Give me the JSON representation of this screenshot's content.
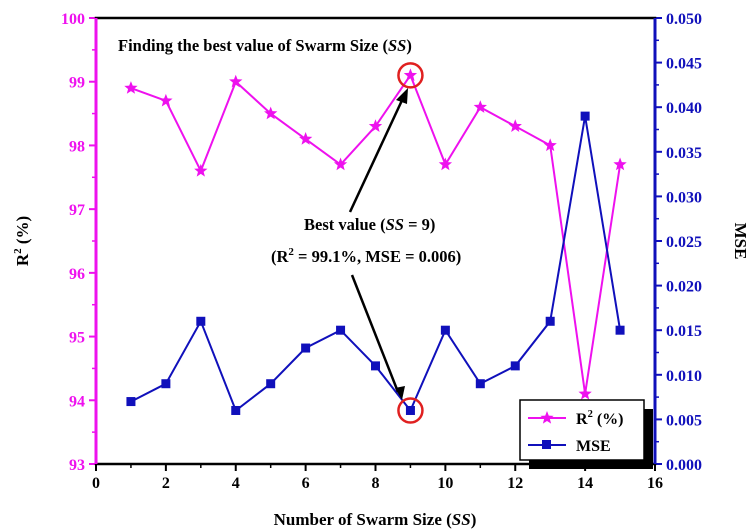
{
  "colors": {
    "r2": "#ee11ee",
    "mse": "#1010bb",
    "marker": "#e02020",
    "axis": "#000000"
  },
  "chart_data": {
    "type": "line",
    "title": "Finding the best value of Swarm Size (SS)",
    "title_main": "Finding the best value of Swarm Size (",
    "title_ss": "SS",
    "title_close": ")",
    "xlabel": "Number of Swarm Size (SS)",
    "xlabel_main": "Number of Swarm Size (",
    "xlabel_ss": "SS",
    "xlabel_close": ")",
    "ylabel_left": "R2 (%)",
    "ylabel_left_base": "R",
    "ylabel_left_sup": "2",
    "ylabel_left_unit": " (%)",
    "ylabel_right": "MSE",
    "xlim": [
      0,
      16
    ],
    "ylim_left": [
      93,
      100
    ],
    "ylim_right": [
      0,
      0.05
    ],
    "xticks": [
      0,
      2,
      4,
      6,
      8,
      10,
      12,
      14,
      16
    ],
    "yticks_left": [
      "93",
      "94",
      "95",
      "96",
      "97",
      "98",
      "99",
      "100"
    ],
    "yticks_right": [
      "0.000",
      "0.005",
      "0.010",
      "0.015",
      "0.020",
      "0.025",
      "0.030",
      "0.035",
      "0.040",
      "0.045",
      "0.050"
    ],
    "x": [
      1,
      2,
      3,
      4,
      5,
      6,
      7,
      8,
      9,
      10,
      11,
      12,
      13,
      14,
      15
    ],
    "series": [
      {
        "name": "R2 (%)",
        "legend_base": "R",
        "legend_sup": "2",
        "legend_unit": " (%)",
        "axis": "left",
        "marker": "star",
        "values": [
          98.9,
          98.7,
          97.6,
          99.0,
          98.5,
          98.1,
          97.7,
          98.3,
          99.1,
          97.7,
          98.6,
          98.3,
          98.0,
          94.1,
          97.7
        ]
      },
      {
        "name": "MSE",
        "legend_base": "MSE",
        "axis": "right",
        "marker": "square",
        "values": [
          0.007,
          0.009,
          0.016,
          0.006,
          0.009,
          0.013,
          0.015,
          0.011,
          0.006,
          0.015,
          0.009,
          0.011,
          0.016,
          0.039,
          0.015
        ]
      }
    ],
    "annotation": {
      "line1_main": "Best value (",
      "line1_ss": "SS",
      "line1_close": " = 9)",
      "line2_open": "(R",
      "line2_sup": "2",
      "line2_rest": " = 99.1%, MSE = 0.006)",
      "highlight_x": 9,
      "highlight_r2": 99.1,
      "highlight_mse": 0.006
    },
    "legend_position": "bottom-right",
    "grid": false
  }
}
